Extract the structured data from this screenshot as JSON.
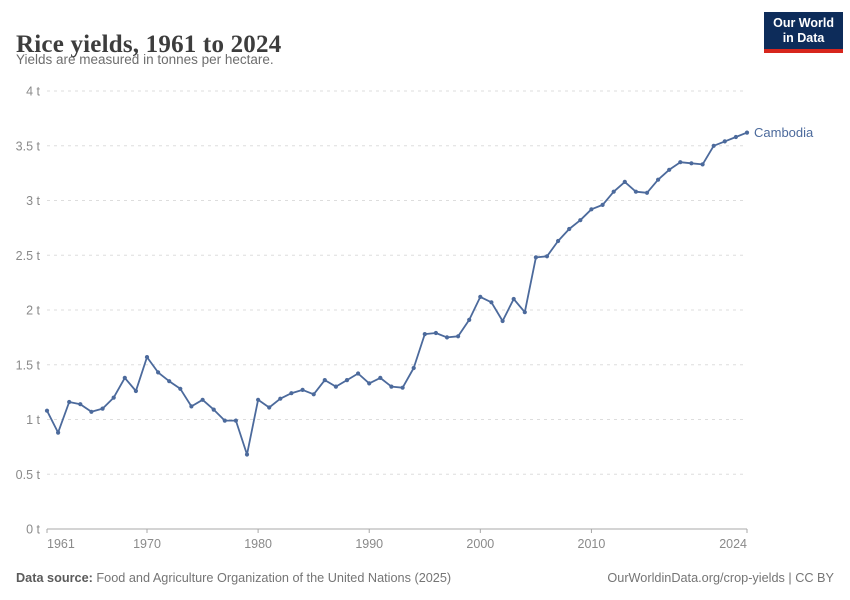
{
  "header": {
    "title": "Rice yields, 1961 to 2024",
    "subtitle": "Yields are measured in tonnes per hectare."
  },
  "logo": {
    "line1": "Our World",
    "line2": "in Data",
    "bg_color": "#0d2c5a",
    "accent_color": "#d7261d"
  },
  "chart_data": {
    "type": "line",
    "title": "Rice yields, 1961 to 2024",
    "ylabel": "tonnes per hectare",
    "xlabel": "",
    "entity": "Cambodia",
    "line_color": "#4C6A9C",
    "grid": "horizontal-dashed",
    "legend_position": "end-of-line-label",
    "ylim": [
      0,
      4
    ],
    "xlim": [
      1961,
      2024
    ],
    "x_tick_values": [
      1961,
      1970,
      1980,
      1990,
      2000,
      2010,
      2024
    ],
    "y_ticks": [
      {
        "value": 0,
        "label": "0 t"
      },
      {
        "value": 0.5,
        "label": "0.5 t"
      },
      {
        "value": 1,
        "label": "1 t"
      },
      {
        "value": 1.5,
        "label": "1.5 t"
      },
      {
        "value": 2,
        "label": "2 t"
      },
      {
        "value": 2.5,
        "label": "2.5 t"
      },
      {
        "value": 3,
        "label": "3 t"
      },
      {
        "value": 3.5,
        "label": "3.5 t"
      },
      {
        "value": 4,
        "label": "4 t"
      }
    ],
    "x": [
      1961,
      1962,
      1963,
      1964,
      1965,
      1966,
      1967,
      1968,
      1969,
      1970,
      1971,
      1972,
      1973,
      1974,
      1975,
      1976,
      1977,
      1978,
      1979,
      1980,
      1981,
      1982,
      1983,
      1984,
      1985,
      1986,
      1987,
      1988,
      1989,
      1990,
      1991,
      1992,
      1993,
      1994,
      1995,
      1996,
      1997,
      1998,
      1999,
      2000,
      2001,
      2002,
      2003,
      2004,
      2005,
      2006,
      2007,
      2008,
      2009,
      2010,
      2011,
      2012,
      2013,
      2014,
      2015,
      2016,
      2017,
      2018,
      2019,
      2020,
      2021,
      2022,
      2023,
      2024
    ],
    "series": [
      {
        "name": "Cambodia",
        "values": [
          1.08,
          0.88,
          1.16,
          1.14,
          1.07,
          1.1,
          1.2,
          1.38,
          1.26,
          1.57,
          1.43,
          1.35,
          1.28,
          1.12,
          1.18,
          1.09,
          0.99,
          0.99,
          0.68,
          1.18,
          1.11,
          1.19,
          1.24,
          1.27,
          1.23,
          1.36,
          1.3,
          1.36,
          1.42,
          1.33,
          1.38,
          1.3,
          1.29,
          1.47,
          1.78,
          1.79,
          1.75,
          1.76,
          1.91,
          2.12,
          2.07,
          1.9,
          2.1,
          1.98,
          2.48,
          2.49,
          2.63,
          2.74,
          2.82,
          2.92,
          2.96,
          3.08,
          3.17,
          3.08,
          3.07,
          3.19,
          3.28,
          3.35,
          3.34,
          3.33,
          3.5,
          3.54,
          3.58,
          3.62
        ]
      }
    ],
    "colors": {
      "gridline": "#dddddd",
      "axis": "#a8a8a8",
      "tick_label": "#8a8a8a"
    }
  },
  "footer": {
    "source_label": "Data source:",
    "source_text": " Food and Agriculture Organization of the United Nations (2025)",
    "link_text": "OurWorldinData.org/crop-yields | CC BY"
  }
}
